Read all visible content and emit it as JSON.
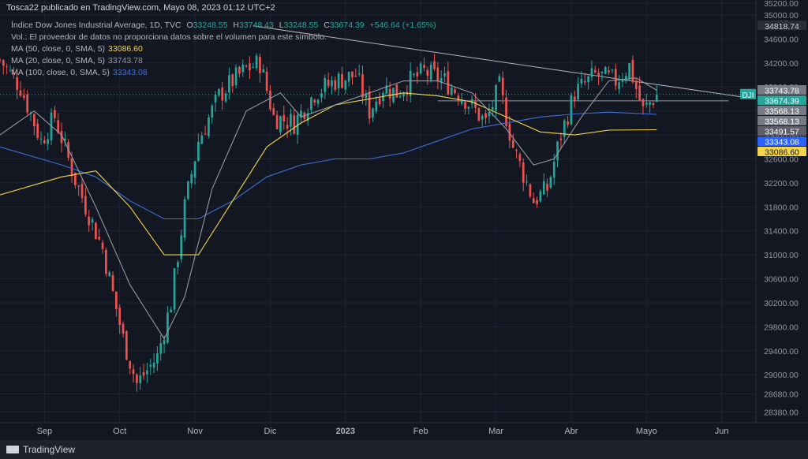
{
  "publisher_line": "Tosca22 publicado en TradingView.com, Mayo 08, 2023 01:12 UTC+2",
  "symbol": {
    "name": "Índice Dow Jones Industrial Average, 1D, TVC",
    "open_label": "O",
    "open": "33248.55",
    "high_label": "H",
    "high": "33748.43",
    "low_label": "L",
    "low": "33248.55",
    "close_label": "C",
    "close": "33674.39",
    "change": "+546.64 (+1.65%)",
    "ticker_badge": "DJI"
  },
  "volume_note": "Vol.: El proveedor de datos no proporciona datos sobre el volumen para este símbolo.",
  "indicators": [
    {
      "label": "MA (50, close, 0, SMA, 5)",
      "value": "33086.60",
      "color": "#f2d54a"
    },
    {
      "label": "MA (20, close, 0, SMA, 5)",
      "value": "33743.78",
      "color": "#9598a1"
    },
    {
      "label": "MA (100, close, 0, SMA, 5)",
      "value": "33343.08",
      "color": "#3f6fd8"
    }
  ],
  "branding": "TradingView",
  "colors": {
    "background": "#131722",
    "up": "#26a69a",
    "down": "#ef5350",
    "grid": "#1f2433"
  },
  "chart_data": {
    "type": "candlestick",
    "currency": "USD",
    "y_ticks": [
      28380,
      28680,
      29000,
      29400,
      29800,
      30200,
      30600,
      31000,
      31400,
      31800,
      32200,
      32600,
      33000,
      33400,
      33800,
      34200,
      34600,
      35000,
      35200
    ],
    "y_tick_labels": [
      "28380.00",
      "28680.00",
      "29000.00",
      "29400.00",
      "29800.00",
      "30200.00",
      "30600.00",
      "31000.00",
      "31400.00",
      "31800.00",
      "32200.00",
      "32600.00",
      "33000.00",
      "33400.00",
      "33800.00",
      "34200.00",
      "34600.00",
      "35000.00",
      "35200.00"
    ],
    "ylim": [
      28200,
      35250
    ],
    "x_ticks": [
      "Sep",
      "Oct",
      "Nov",
      "Dic",
      "2023",
      "Feb",
      "Mar",
      "Abr",
      "Mayo",
      "Jun"
    ],
    "x_tick_positions": [
      5,
      27,
      49,
      71,
      93,
      115,
      137,
      159,
      181,
      203
    ],
    "x_range": [
      -8,
      213
    ],
    "price_labels": [
      {
        "value": "34818.74",
        "price": 34818.74,
        "style": "plain"
      },
      {
        "value": "33743.78",
        "price": 33743.78,
        "style": "gray"
      },
      {
        "value": "33674.39",
        "price": 33674.39,
        "style": "green"
      },
      {
        "value": "33568.13",
        "price": 33568.13,
        "style": "gray"
      },
      {
        "value": "33568.13",
        "price": 33568.13,
        "style": "gray"
      },
      {
        "value": "33491.57",
        "price": 33491.57,
        "style": "darkgray"
      },
      {
        "value": "33343.08",
        "price": 33343.08,
        "style": "blue"
      },
      {
        "value": "33086.60",
        "price": 33086.6,
        "style": "yellow"
      }
    ],
    "trendline": {
      "x1": 66,
      "y1": 34818.74,
      "x2": 213,
      "y2": 33600
    },
    "horizontal_line": {
      "x1": 120,
      "x2": 205,
      "price": 33568.13
    },
    "waypoints": [
      [
        -8,
        34250
      ],
      [
        -2,
        33800
      ],
      [
        4,
        32900
      ],
      [
        8,
        33300
      ],
      [
        14,
        32250
      ],
      [
        22,
        31100
      ],
      [
        28,
        29600
      ],
      [
        32,
        28850
      ],
      [
        38,
        29300
      ],
      [
        42,
        30200
      ],
      [
        46,
        31800
      ],
      [
        50,
        32900
      ],
      [
        56,
        33650
      ],
      [
        60,
        33900
      ],
      [
        64,
        34100
      ],
      [
        68,
        34200
      ],
      [
        72,
        33300
      ],
      [
        78,
        33200
      ],
      [
        84,
        33700
      ],
      [
        90,
        33900
      ],
      [
        96,
        34000
      ],
      [
        100,
        33400
      ],
      [
        104,
        33800
      ],
      [
        108,
        33700
      ],
      [
        112,
        33900
      ],
      [
        116,
        34050
      ],
      [
        122,
        33900
      ],
      [
        128,
        33600
      ],
      [
        134,
        33200
      ],
      [
        138,
        33800
      ],
      [
        142,
        32800
      ],
      [
        148,
        31900
      ],
      [
        152,
        32100
      ],
      [
        156,
        33000
      ],
      [
        160,
        33700
      ],
      [
        166,
        34000
      ],
      [
        172,
        33900
      ],
      [
        176,
        34150
      ],
      [
        180,
        33400
      ],
      [
        184,
        33674
      ]
    ],
    "ma50": [
      [
        -8,
        32000
      ],
      [
        10,
        32300
      ],
      [
        20,
        32400
      ],
      [
        30,
        31800
      ],
      [
        40,
        31000
      ],
      [
        50,
        31000
      ],
      [
        60,
        31900
      ],
      [
        70,
        32800
      ],
      [
        80,
        33200
      ],
      [
        90,
        33500
      ],
      [
        100,
        33600
      ],
      [
        110,
        33700
      ],
      [
        120,
        33650
      ],
      [
        130,
        33550
      ],
      [
        140,
        33300
      ],
      [
        150,
        33050
      ],
      [
        160,
        33000
      ],
      [
        170,
        33080
      ],
      [
        184,
        33086
      ]
    ],
    "ma20": [
      [
        -8,
        33000
      ],
      [
        2,
        33400
      ],
      [
        10,
        33000
      ],
      [
        20,
        31800
      ],
      [
        30,
        30500
      ],
      [
        40,
        29600
      ],
      [
        46,
        30300
      ],
      [
        54,
        32100
      ],
      [
        64,
        33400
      ],
      [
        74,
        33700
      ],
      [
        80,
        33300
      ],
      [
        90,
        33500
      ],
      [
        100,
        33700
      ],
      [
        110,
        33900
      ],
      [
        120,
        33900
      ],
      [
        130,
        33700
      ],
      [
        140,
        33100
      ],
      [
        148,
        32500
      ],
      [
        154,
        32600
      ],
      [
        162,
        33300
      ],
      [
        170,
        33900
      ],
      [
        178,
        33950
      ],
      [
        184,
        33744
      ]
    ],
    "ma100": [
      [
        -8,
        32800
      ],
      [
        10,
        32500
      ],
      [
        20,
        32300
      ],
      [
        30,
        31900
      ],
      [
        40,
        31600
      ],
      [
        50,
        31600
      ],
      [
        60,
        31900
      ],
      [
        70,
        32300
      ],
      [
        80,
        32500
      ],
      [
        90,
        32600
      ],
      [
        100,
        32600
      ],
      [
        110,
        32700
      ],
      [
        120,
        32900
      ],
      [
        130,
        33100
      ],
      [
        140,
        33200
      ],
      [
        150,
        33300
      ],
      [
        160,
        33350
      ],
      [
        170,
        33380
      ],
      [
        184,
        33343
      ]
    ]
  }
}
